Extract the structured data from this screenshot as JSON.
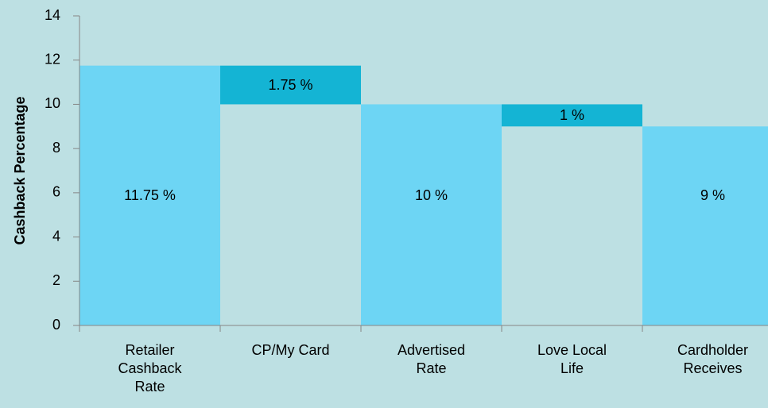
{
  "chart_data": {
    "type": "waterfall",
    "y_label": "Cashback Percentage",
    "categories": [
      "Retailer Cashback Rate",
      "CP/My Card",
      "Advertised Rate",
      "Love Local Life",
      "Cardholder Receives"
    ],
    "values": [
      11.75,
      1.75,
      10,
      1,
      9
    ],
    "value_labels": [
      "11.75 %",
      "1.75 %",
      "10 %",
      "1 %",
      "9 %"
    ],
    "measure": [
      "total",
      "decrease",
      "total",
      "decrease",
      "total"
    ],
    "colors": {
      "total": "#6dd5f4",
      "decrease": "#14b4d4"
    },
    "ylim": [
      0,
      14
    ],
    "yticks": [
      0,
      2,
      4,
      6,
      8,
      10,
      12,
      14
    ],
    "grid": false
  }
}
